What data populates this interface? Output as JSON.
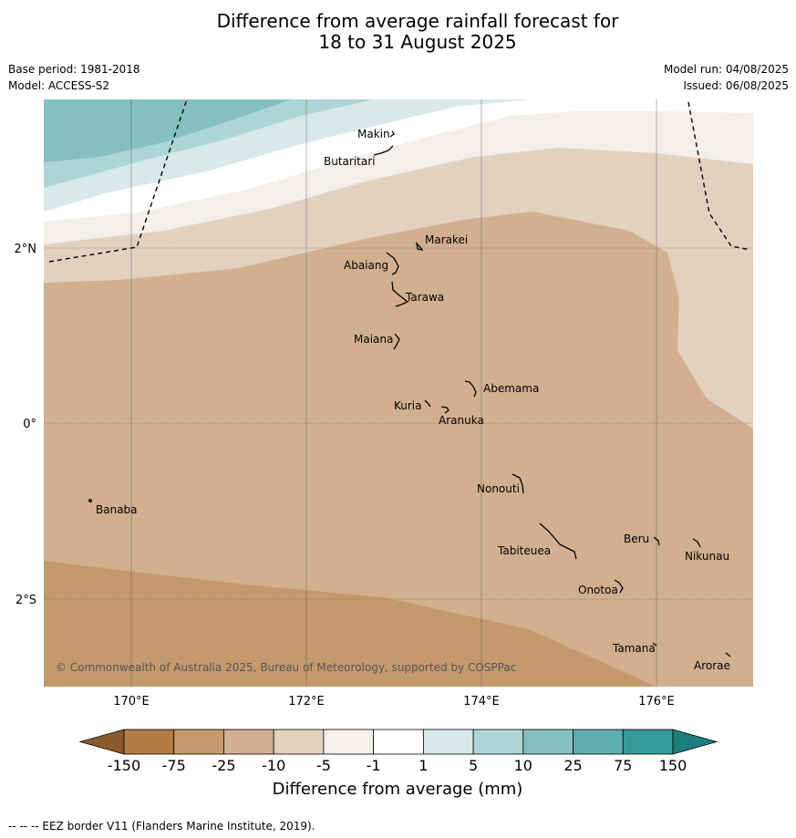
{
  "title_line1": "Difference from average rainfall forecast for",
  "title_line2": "18 to 31 August 2025",
  "base_period": "Base period: 1981-2018",
  "model": "Model: ACCESS-S2",
  "model_run": "Model run: 04/08/2025",
  "issued": "Issued: 06/08/2025",
  "copyright": "© Commonwealth of Australia 2025, Bureau of Meteorology, supported by COSPPac",
  "footnote": "-- -- -- EEZ border V11 (Flanders Marine Institute, 2019).",
  "map": {
    "lon_range": [
      169,
      177.1
    ],
    "lat_range": [
      -2.95,
      3.7
    ],
    "lat_labels": [
      {
        "lat": 2,
        "label": "2°N"
      },
      {
        "lat": 0,
        "label": "0°"
      },
      {
        "lat": -2,
        "label": "2°S"
      }
    ],
    "lon_labels": [
      {
        "lon": 170,
        "label": "170°E"
      },
      {
        "lon": 172,
        "label": "172°E"
      },
      {
        "lon": 174,
        "label": "174°E"
      },
      {
        "lon": 176,
        "label": "176°E"
      }
    ],
    "places": [
      {
        "name": "Makin",
        "lon": 173.0,
        "lat": 3.35
      },
      {
        "name": "Butaritari",
        "lon": 172.9,
        "lat": 3.1
      },
      {
        "name": "Marakei",
        "lon": 173.3,
        "lat": 1.97
      },
      {
        "name": "Abaiang",
        "lon": 172.95,
        "lat": 1.82
      },
      {
        "name": "Tarawa",
        "lon": 173.05,
        "lat": 1.4
      },
      {
        "name": "Maiana",
        "lon": 173.0,
        "lat": 0.92
      },
      {
        "name": "Abemama",
        "lon": 173.87,
        "lat": 0.4
      },
      {
        "name": "Kuria",
        "lon": 173.4,
        "lat": 0.23
      },
      {
        "name": "Aranuka",
        "lon": 173.6,
        "lat": 0.17
      },
      {
        "name": "Nonouti",
        "lon": 174.45,
        "lat": -0.65
      },
      {
        "name": "Banaba",
        "lon": 169.55,
        "lat": -0.87
      },
      {
        "name": "Tabiteuea",
        "lon": 174.8,
        "lat": -1.35
      },
      {
        "name": "Beru",
        "lon": 176.0,
        "lat": -1.33
      },
      {
        "name": "Nikunau",
        "lon": 176.45,
        "lat": -1.37
      },
      {
        "name": "Onotoa",
        "lon": 175.55,
        "lat": -1.85
      },
      {
        "name": "Tamana",
        "lon": 175.98,
        "lat": -2.5
      },
      {
        "name": "Arorae",
        "lon": 176.82,
        "lat": -2.65
      }
    ]
  },
  "colorbar": {
    "ticks": [
      "-150",
      "-75",
      "-25",
      "-10",
      "-5",
      "-1",
      "1",
      "5",
      "10",
      "25",
      "75",
      "150"
    ],
    "colors": [
      "#8b5a2b",
      "#b07b45",
      "#c49a6c",
      "#d2b08f",
      "#e3d1bf",
      "#f3efea",
      "#ffffff",
      "#d7e9e8",
      "#add5d5",
      "#85c0c0",
      "#5eaeae",
      "#369b99",
      "#1c7f7b"
    ],
    "label": "Difference from average (mm)"
  }
}
